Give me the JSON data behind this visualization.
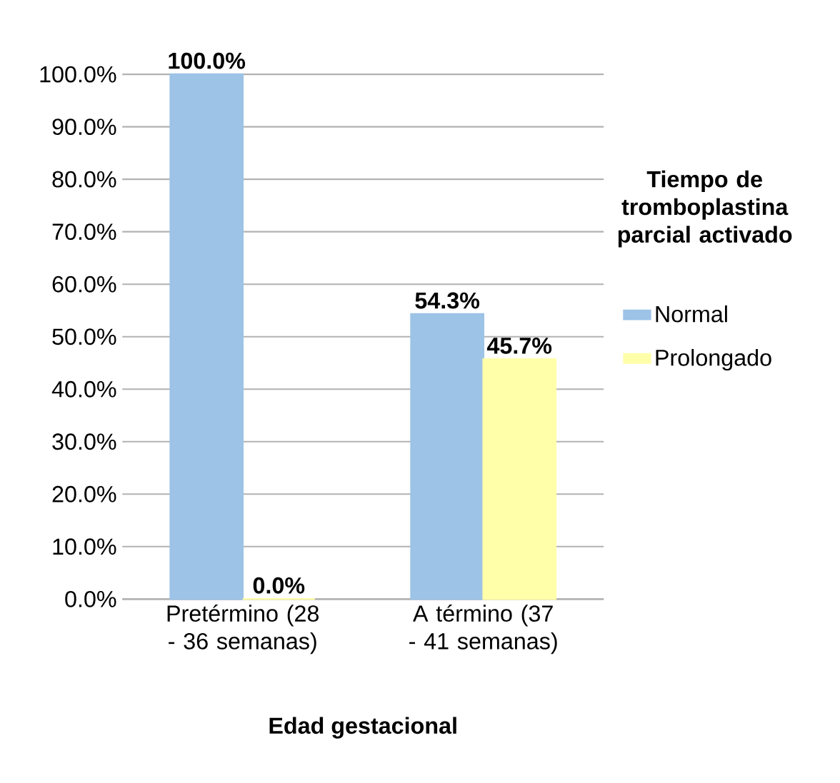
{
  "chart_data": {
    "type": "bar",
    "xlabel": "Edad gestacional",
    "legend_title": "Tiempo de tromboplastina parcial activado",
    "categories": [
      "Pretérmino (28 - 36 semanas)",
      "A término (37 - 41 semanas)"
    ],
    "series": [
      {
        "name": "Normal",
        "color": "#9dc3e6",
        "values": [
          100.0,
          54.3
        ],
        "value_labels": [
          "100.0%",
          "54.3%"
        ]
      },
      {
        "name": "Prolongado",
        "color": "#ffffaa",
        "values": [
          0.0,
          45.7
        ],
        "value_labels": [
          "0.0%",
          "45.7%"
        ]
      }
    ],
    "ylim": [
      0,
      100
    ],
    "yticks": [
      {
        "value": 0,
        "label": "0.0%"
      },
      {
        "value": 10,
        "label": "10.0%"
      },
      {
        "value": 20,
        "label": "20.0%"
      },
      {
        "value": 30,
        "label": "30.0%"
      },
      {
        "value": 40,
        "label": "40.0%"
      },
      {
        "value": 50,
        "label": "50.0%"
      },
      {
        "value": 60,
        "label": "60.0%"
      },
      {
        "value": 70,
        "label": "70.0%"
      },
      {
        "value": 80,
        "label": "80.0%"
      },
      {
        "value": 90,
        "label": "90.0%"
      },
      {
        "value": 100,
        "label": "100.0%"
      }
    ],
    "grid": "y",
    "legend": "right"
  }
}
